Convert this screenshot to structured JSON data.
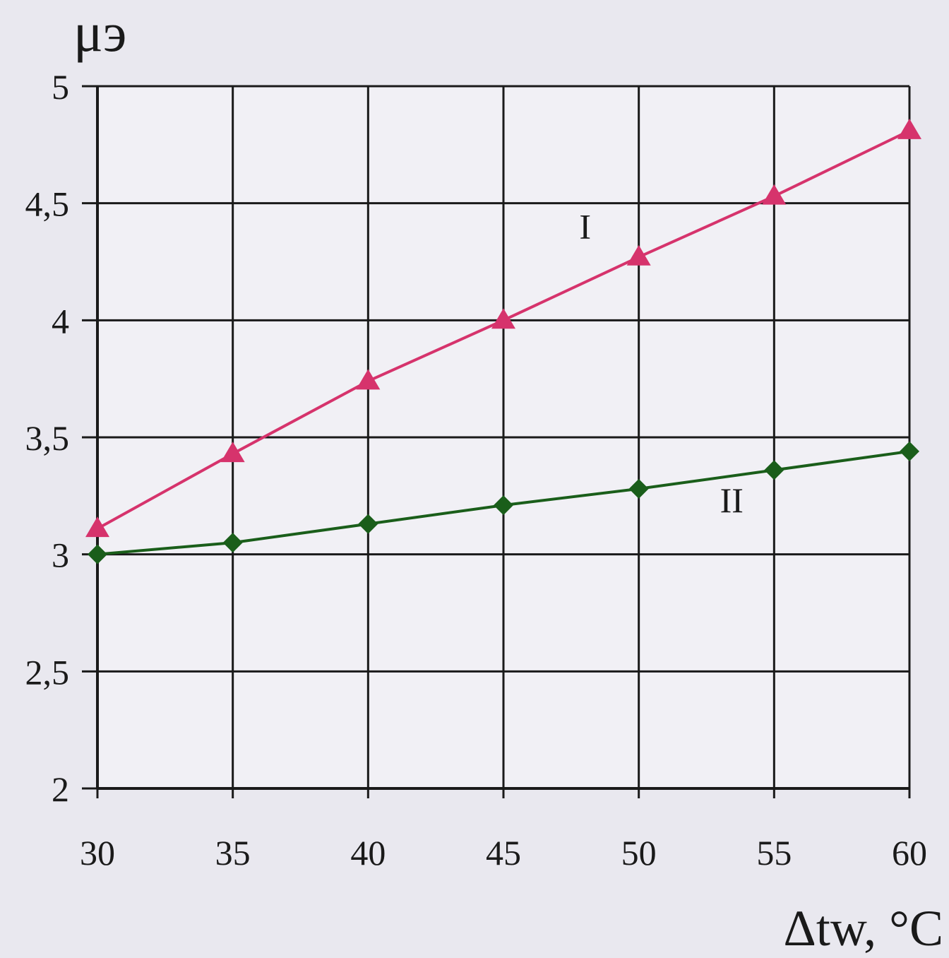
{
  "chart_data": {
    "type": "line",
    "title": "",
    "ylabel": "μэ",
    "xlabel": "Δtw, °C",
    "x": [
      30,
      35,
      40,
      45,
      50,
      55,
      60
    ],
    "xlim": [
      30,
      60
    ],
    "ylim": [
      2,
      5
    ],
    "xticks": [
      "30",
      "35",
      "40",
      "45",
      "50",
      "55",
      "60"
    ],
    "yticks": [
      "2",
      "2,5",
      "3",
      "3,5",
      "4",
      "4,5",
      "5"
    ],
    "grid": true,
    "series": [
      {
        "name": "I",
        "values": [
          3.11,
          3.43,
          3.74,
          4.0,
          4.27,
          4.53,
          4.81
        ],
        "color": "#d6336c",
        "marker": "triangle"
      },
      {
        "name": "II",
        "values": [
          3.0,
          3.05,
          3.13,
          3.21,
          3.28,
          3.36,
          3.44
        ],
        "color": "#1a5e1a",
        "marker": "diamond"
      }
    ]
  }
}
